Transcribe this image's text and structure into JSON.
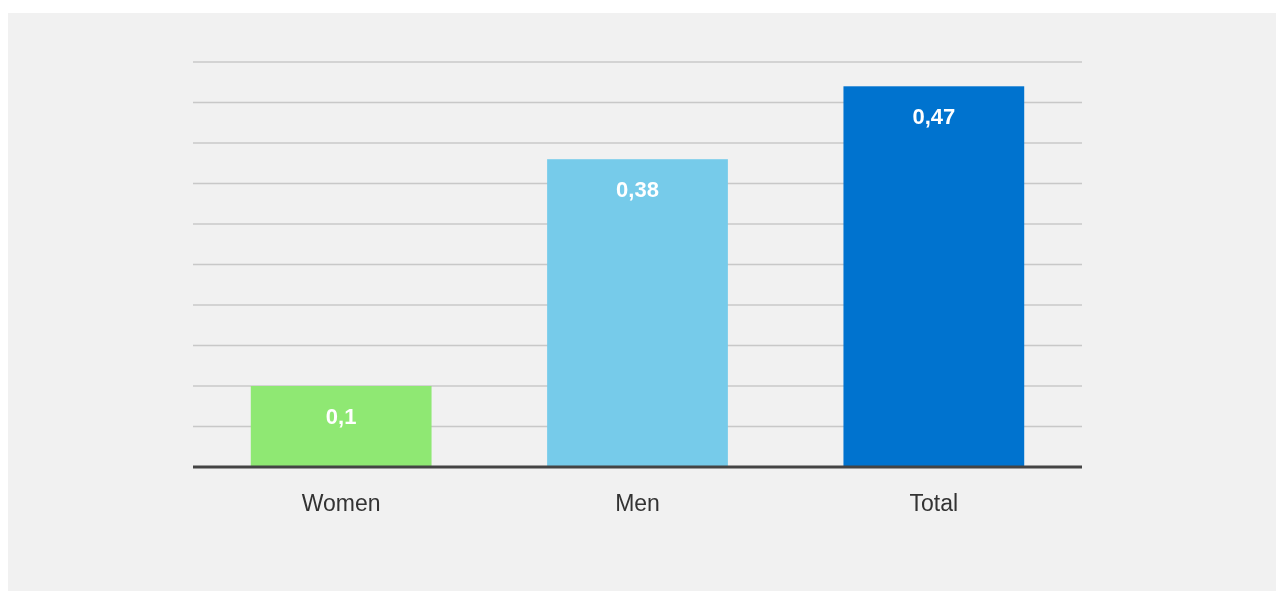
{
  "chart_data": {
    "type": "bar",
    "categories": [
      "Women",
      "Men",
      "Total"
    ],
    "values": [
      0.1,
      0.38,
      0.47
    ],
    "colors": [
      "#8fe873",
      "#76cbea",
      "#0073cf"
    ],
    "value_labels": [
      "0,1",
      "0,38",
      "0,47"
    ],
    "ylim": [
      0,
      0.5
    ],
    "yticks": [
      0,
      0.05,
      0.1,
      0.15,
      0.2,
      0.25,
      0.3,
      0.35,
      0.4,
      0.45,
      0.5
    ],
    "tick_labels": "x",
    "grid": "y"
  }
}
